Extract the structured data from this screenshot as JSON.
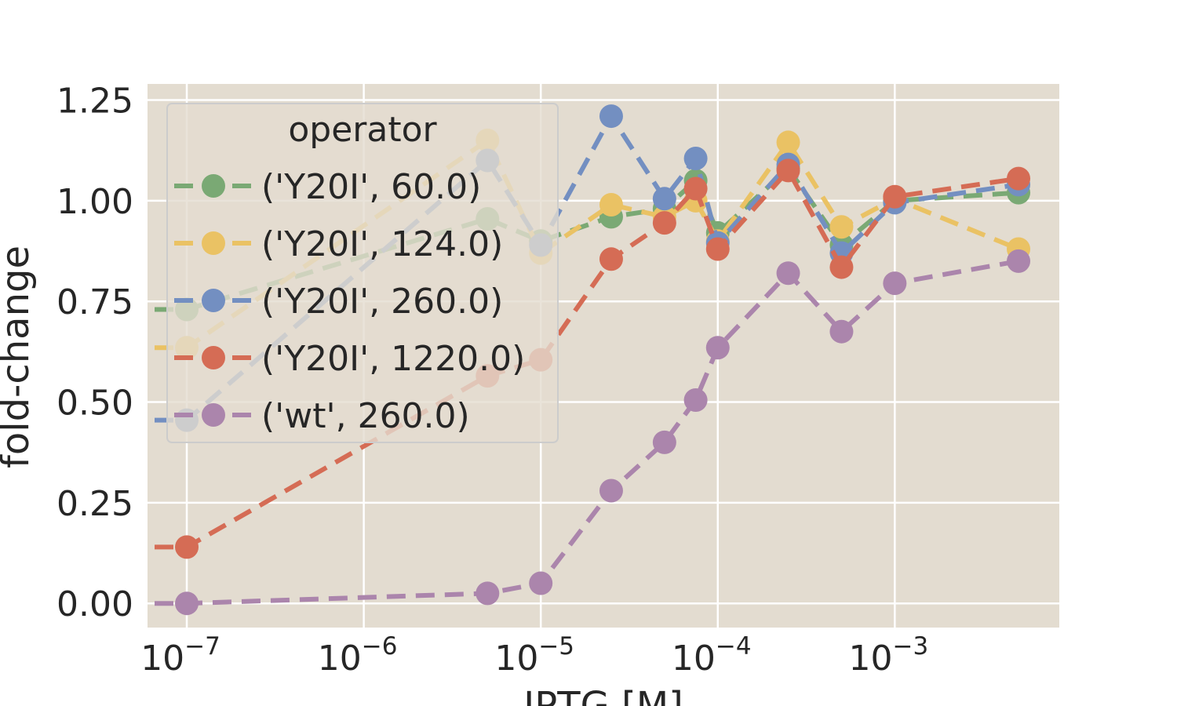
{
  "chart_data": {
    "type": "line",
    "title": "",
    "xlabel": "IPTG [M]",
    "ylabel": "fold-change",
    "xscale": "log",
    "xlim": [
      6e-08,
      0.0085
    ],
    "ylim": [
      -0.06,
      1.29
    ],
    "xticks": [
      1e-07,
      1e-06,
      1e-05,
      0.0001,
      0.001
    ],
    "xtick_labels": [
      {
        "base": "10",
        "exp": "−7"
      },
      {
        "base": "10",
        "exp": "−6"
      },
      {
        "base": "10",
        "exp": "−5"
      },
      {
        "base": "10",
        "exp": "−4"
      },
      {
        "base": "10",
        "exp": "−3"
      }
    ],
    "yticks": [
      0.0,
      0.25,
      0.5,
      0.75,
      1.0,
      1.25
    ],
    "ytick_labels": [
      "0.00",
      "0.25",
      "0.50",
      "0.75",
      "1.00",
      "1.25"
    ],
    "grid": true,
    "legend": {
      "title": "operator",
      "position": "upper-left"
    },
    "x": [
      0,
      1e-07,
      5e-06,
      1e-05,
      2.5e-05,
      5e-05,
      7.5e-05,
      0.0001,
      0.00025,
      0.0005,
      0.001,
      0.005
    ],
    "series": [
      {
        "name": "('Y20I', 60.0)",
        "color": "#7aa974",
        "values": [
          0.73,
          0.73,
          0.955,
          0.9,
          0.96,
          0.98,
          1.05,
          0.92,
          1.08,
          0.89,
          1.0,
          1.02
        ]
      },
      {
        "name": "('Y20I', 124.0)",
        "color": "#eac264",
        "values": [
          0.635,
          0.635,
          1.15,
          0.87,
          0.99,
          0.96,
          1.0,
          0.9,
          1.145,
          0.935,
          1.005,
          0.88
        ]
      },
      {
        "name": "('Y20I', 260.0)",
        "color": "#738fc1",
        "values": [
          0.455,
          0.455,
          1.1,
          0.89,
          1.21,
          1.005,
          1.105,
          0.895,
          1.09,
          0.87,
          0.995,
          1.04
        ]
      },
      {
        "name": "('Y20I', 1220.0)",
        "color": "#d56c55",
        "values": [
          0.14,
          0.14,
          0.565,
          0.605,
          0.855,
          0.945,
          1.03,
          0.88,
          1.075,
          0.835,
          1.01,
          1.055
        ]
      },
      {
        "name": "('wt', 260.0)",
        "color": "#ab85ac",
        "values": [
          0.0,
          0.0,
          0.025,
          0.05,
          0.28,
          0.4,
          0.505,
          0.635,
          0.82,
          0.675,
          0.795,
          0.85
        ]
      }
    ]
  }
}
